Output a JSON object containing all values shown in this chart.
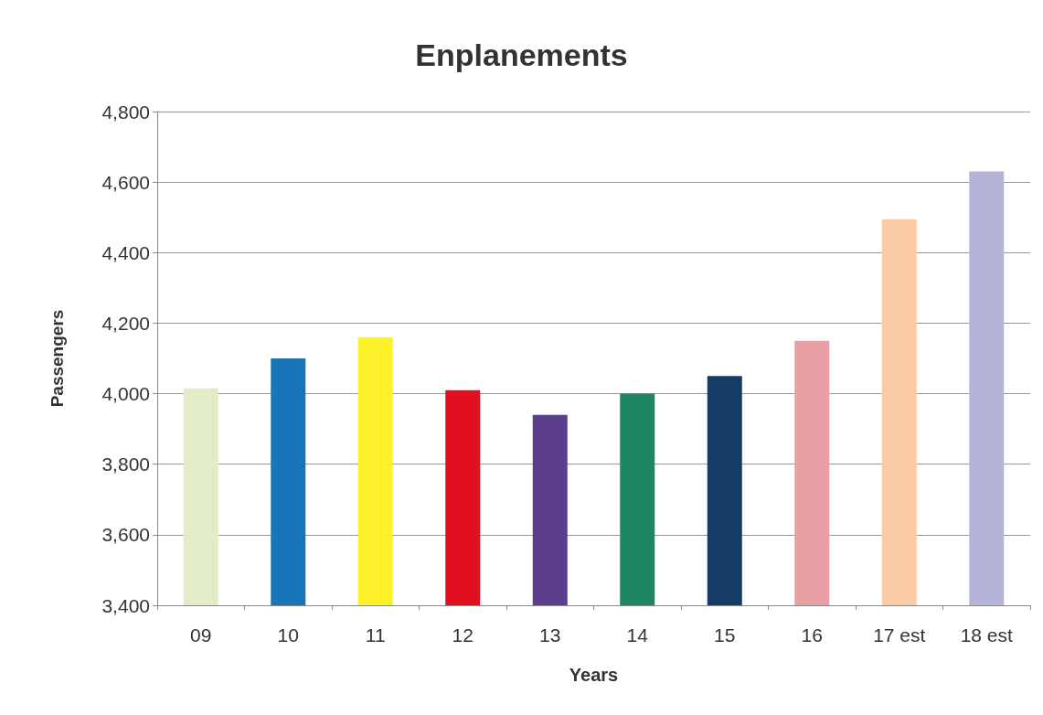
{
  "chart_data": {
    "type": "bar",
    "title": "Enplanements",
    "xlabel": "Years",
    "ylabel": "Passengers",
    "categories": [
      "09",
      "10",
      "11",
      "12",
      "13",
      "14",
      "15",
      "16",
      "17 est",
      "18 est"
    ],
    "values": [
      4015,
      4100,
      4160,
      4010,
      3940,
      4000,
      4050,
      4150,
      4495,
      4630
    ],
    "colors": [
      "#e2ecc8",
      "#1a75b8",
      "#fdf22a",
      "#e01020",
      "#5b3f8c",
      "#1e8660",
      "#143c64",
      "#e8a0a4",
      "#fccca6",
      "#b4b4d8"
    ],
    "ylim": [
      3400,
      4800
    ],
    "yticks": [
      {
        "value": 3400,
        "label": "3,400"
      },
      {
        "value": 3600,
        "label": "3,600"
      },
      {
        "value": 3800,
        "label": "3,800"
      },
      {
        "value": 4000,
        "label": "4,000"
      },
      {
        "value": 4200,
        "label": "4,200"
      },
      {
        "value": 4400,
        "label": "4,400"
      },
      {
        "value": 4600,
        "label": "4,600"
      },
      {
        "value": 4800,
        "label": "4,800"
      }
    ],
    "grid": "y"
  }
}
